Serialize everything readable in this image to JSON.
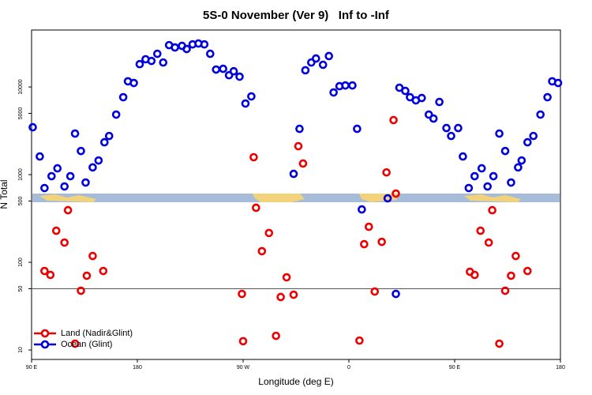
{
  "chart_data": {
    "type": "scatter",
    "title": "5S-0 November (Ver 9)   Inf to -Inf",
    "x_label": "Longitude (deg E)",
    "y_label": "N Total",
    "log_y": true,
    "xlim": [
      90,
      540
    ],
    "ylim": [
      7.8,
      44600
    ],
    "xticks": [
      {
        "value": 90,
        "label": "90 E"
      },
      180,
      {
        "value": 270,
        "label": "90 W"
      },
      {
        "value": 360,
        "label": "0"
      },
      {
        "value": 450,
        "label": "90 E"
      },
      {
        "value": 540,
        "label": "180"
      }
    ],
    "yticks": [
      10,
      50,
      100,
      500,
      1000,
      5000,
      10000
    ],
    "reference_line": 50,
    "legend": "bottom-left",
    "series": [
      {
        "name": "Land (Nadir&Glint)",
        "color": "#ee0000",
        "x": [
          101,
          106,
          111,
          118,
          121,
          127,
          132,
          137,
          142,
          151,
          269,
          270,
          279,
          281,
          286,
          292,
          298,
          302,
          307,
          313,
          317,
          321,
          369,
          373,
          377,
          382,
          388,
          392,
          398,
          400,
          463,
          467,
          472,
          479,
          482,
          488,
          493,
          498,
          502,
          512
        ],
        "values": [
          79.6,
          71.8,
          229,
          168,
          393,
          11.8,
          47.4,
          70.3,
          118,
          79.6,
          43.6,
          12.6,
          1580,
          419,
          134,
          216,
          14.5,
          40.2,
          67.4,
          42.7,
          2110,
          1340,
          12.8,
          161,
          254,
          46.4,
          171,
          1060,
          4190,
          608,
          78,
          71.8,
          229,
          168,
          393,
          11.8,
          47.4,
          70.3,
          118,
          79.6
        ]
      },
      {
        "name": "Ocean (Glint)",
        "color": "#0000dd",
        "x": [
          91,
          97,
          101,
          107,
          112,
          118,
          123,
          127,
          132,
          136,
          142,
          147,
          152,
          156,
          162,
          168,
          172,
          177,
          182,
          187,
          192,
          197,
          202,
          207,
          212,
          218,
          222,
          227,
          232,
          237,
          242,
          247,
          253,
          258,
          262,
          267,
          272,
          277,
          313,
          318,
          323,
          328,
          332,
          338,
          343,
          347,
          352,
          357,
          363,
          367,
          371,
          393,
          400,
          403,
          408,
          412,
          417,
          422,
          428,
          432,
          437,
          443,
          447,
          453,
          457,
          462,
          467,
          473,
          478,
          483,
          488,
          493,
          498,
          504,
          507,
          512,
          517,
          523,
          529,
          533,
          538
        ],
        "values": [
          3470,
          1610,
          703,
          960,
          1180,
          733,
          960,
          2940,
          1860,
          813,
          1210,
          1450,
          2340,
          2760,
          4840,
          7640,
          11600,
          11100,
          18200,
          20700,
          19800,
          23900,
          19000,
          30000,
          28200,
          29400,
          27100,
          30600,
          31300,
          30600,
          23900,
          15800,
          16100,
          13600,
          15100,
          13100,
          6470,
          7800,
          1020,
          3330,
          15500,
          19000,
          21100,
          17900,
          22500,
          8650,
          10200,
          10400,
          10400,
          3330,
          401,
          537,
          43.6,
          9800,
          9010,
          7640,
          7030,
          7480,
          4840,
          4360,
          6740,
          3400,
          2760,
          3400,
          1610,
          703,
          960,
          1180,
          733,
          960,
          2940,
          1860,
          813,
          1210,
          1450,
          2340,
          2760,
          4840,
          7640,
          11600,
          11100
        ]
      }
    ]
  }
}
